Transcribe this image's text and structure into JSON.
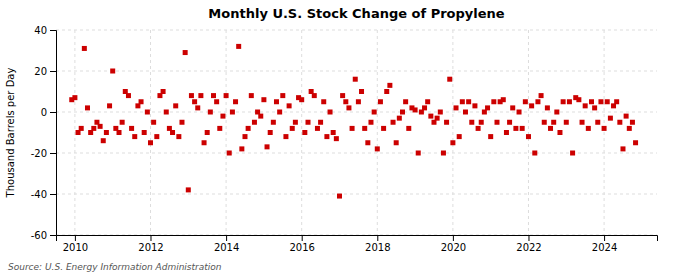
{
  "chart_data": {
    "type": "scatter",
    "title": "Monthly U.S. Stock Change of Propylene",
    "ylabel": "Thousand Barrels per Day",
    "annotations": [
      "Source: U.S. Energy Information Administration"
    ],
    "color": "#cc0000",
    "marker": "square",
    "grid": true,
    "xlim": [
      2009.5,
      2025.4
    ],
    "xticks": [
      2010,
      2012,
      2014,
      2016,
      2018,
      2020,
      2022,
      2024
    ],
    "ylim": [
      -60,
      40
    ],
    "yticks": [
      -60,
      -40,
      -20,
      0,
      20,
      40
    ],
    "x": [
      2009.917,
      2010.0,
      2010.083,
      2010.167,
      2010.25,
      2010.333,
      2010.417,
      2010.5,
      2010.583,
      2010.667,
      2010.75,
      2010.833,
      2010.917,
      2011.0,
      2011.083,
      2011.167,
      2011.25,
      2011.333,
      2011.417,
      2011.5,
      2011.583,
      2011.667,
      2011.75,
      2011.833,
      2011.917,
      2012.0,
      2012.083,
      2012.167,
      2012.25,
      2012.333,
      2012.417,
      2012.5,
      2012.583,
      2012.667,
      2012.75,
      2012.833,
      2012.917,
      2013.0,
      2013.083,
      2013.167,
      2013.25,
      2013.333,
      2013.417,
      2013.5,
      2013.583,
      2013.667,
      2013.75,
      2013.833,
      2013.917,
      2014.0,
      2014.083,
      2014.167,
      2014.25,
      2014.333,
      2014.417,
      2014.5,
      2014.583,
      2014.667,
      2014.75,
      2014.833,
      2014.917,
      2015.0,
      2015.083,
      2015.167,
      2015.25,
      2015.333,
      2015.417,
      2015.5,
      2015.583,
      2015.667,
      2015.75,
      2015.833,
      2015.917,
      2016.0,
      2016.083,
      2016.167,
      2016.25,
      2016.333,
      2016.417,
      2016.5,
      2016.583,
      2016.667,
      2016.75,
      2016.833,
      2016.917,
      2017.0,
      2017.083,
      2017.167,
      2017.25,
      2017.333,
      2017.417,
      2017.5,
      2017.583,
      2017.667,
      2017.75,
      2017.833,
      2017.917,
      2018.0,
      2018.083,
      2018.167,
      2018.25,
      2018.333,
      2018.417,
      2018.5,
      2018.583,
      2018.667,
      2018.75,
      2018.833,
      2018.917,
      2019.0,
      2019.083,
      2019.167,
      2019.25,
      2019.333,
      2019.417,
      2019.5,
      2019.583,
      2019.667,
      2019.75,
      2019.833,
      2019.917,
      2020.0,
      2020.083,
      2020.167,
      2020.25,
      2020.333,
      2020.417,
      2020.5,
      2020.583,
      2020.667,
      2020.75,
      2020.833,
      2020.917,
      2021.0,
      2021.083,
      2021.167,
      2021.25,
      2021.333,
      2021.417,
      2021.5,
      2021.583,
      2021.667,
      2021.75,
      2021.833,
      2021.917,
      2022.0,
      2022.083,
      2022.167,
      2022.25,
      2022.333,
      2022.417,
      2022.5,
      2022.583,
      2022.667,
      2022.75,
      2022.833,
      2022.917,
      2023.0,
      2023.083,
      2023.167,
      2023.25,
      2023.333,
      2023.417,
      2023.5,
      2023.583,
      2023.667,
      2023.75,
      2023.833,
      2023.917,
      2024.0,
      2024.083,
      2024.167,
      2024.25,
      2024.333,
      2024.417,
      2024.5,
      2024.583,
      2024.667,
      2024.75,
      2024.833
    ],
    "values": [
      6,
      7,
      -10,
      -8,
      31,
      2,
      -10,
      -8,
      -5,
      -7,
      -14,
      -10,
      3,
      20,
      -8,
      -10,
      -5,
      10,
      8,
      -8,
      -12,
      3,
      5,
      -10,
      0,
      -15,
      -5,
      -12,
      8,
      10,
      0,
      -8,
      -10,
      3,
      -12,
      -5,
      29,
      -38,
      8,
      5,
      2,
      8,
      -15,
      -10,
      0,
      8,
      5,
      -8,
      -2,
      8,
      -20,
      0,
      5,
      32,
      -18,
      -12,
      -8,
      8,
      -5,
      0,
      -2,
      6,
      -17,
      -10,
      -5,
      5,
      0,
      8,
      -12,
      3,
      -8,
      -5,
      7,
      6,
      -10,
      -5,
      10,
      8,
      -8,
      -5,
      5,
      -12,
      0,
      -10,
      -13,
      -41,
      8,
      5,
      2,
      -8,
      16,
      5,
      10,
      -8,
      -15,
      -5,
      0,
      -18,
      5,
      -8,
      10,
      13,
      -5,
      -15,
      -3,
      0,
      5,
      -8,
      2,
      1,
      -20,
      0,
      2,
      5,
      -2,
      -5,
      -3,
      0,
      -20,
      -5,
      16,
      -15,
      2,
      -12,
      5,
      0,
      5,
      -5,
      3,
      -8,
      -5,
      0,
      2,
      -12,
      5,
      -5,
      5,
      6,
      -10,
      -5,
      2,
      -8,
      0,
      -8,
      5,
      -12,
      3,
      -20,
      5,
      8,
      -5,
      2,
      -8,
      -5,
      0,
      -10,
      5,
      -5,
      5,
      -20,
      7,
      6,
      -5,
      3,
      -8,
      5,
      2,
      -5,
      5,
      -8,
      5,
      -3,
      3,
      5,
      -5,
      -18,
      -2,
      -8,
      -5,
      -15
    ]
  }
}
